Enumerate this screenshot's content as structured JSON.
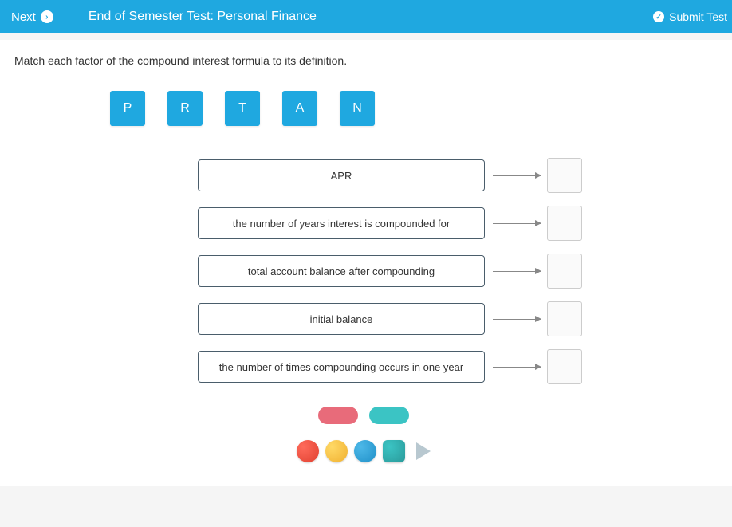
{
  "header": {
    "next_label": "Next",
    "title": "End of Semester Test: Personal Finance",
    "submit_label": "Submit Test"
  },
  "question": {
    "instruction": "Match each factor of the compound interest formula to its definition.",
    "tiles": [
      "P",
      "R",
      "T",
      "A",
      "N"
    ],
    "definitions": [
      "APR",
      "the number of years interest is compounded for",
      "total account balance after compounding",
      "initial balance",
      "the number of times compounding occurs in one year"
    ]
  },
  "colors": {
    "header_bg": "#1fa8e0",
    "tile_bg": "#1fa8e0",
    "def_border": "#4a5d6b",
    "pill_pink": "#e86b7a",
    "pill_teal": "#3bc4c4"
  }
}
